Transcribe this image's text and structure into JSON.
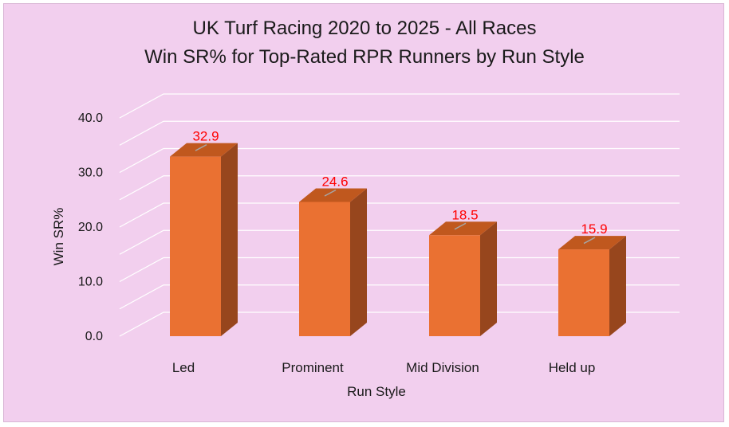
{
  "chart_data": {
    "type": "bar",
    "title": "UK Turf Racing 2020 to 2025 - All Races",
    "subtitle": "Win SR% for Top-Rated RPR Runners by Run Style",
    "xlabel": "Run Style",
    "ylabel": "Win SR%",
    "categories": [
      "Led",
      "Prominent",
      "Mid Division",
      "Held up"
    ],
    "values": [
      32.9,
      24.6,
      18.5,
      15.9
    ],
    "data_labels": [
      "32.9",
      "24.6",
      "18.5",
      "15.9"
    ],
    "yticks": [
      "0.0",
      "10.0",
      "20.0",
      "30.0",
      "40.0"
    ],
    "ylim": [
      0,
      40
    ],
    "grid": true,
    "style": "3d-column",
    "colors": {
      "bar_front": "#ea7132",
      "bar_top": "#c0581e",
      "bar_side": "#97461d",
      "background": "#f2cfee",
      "gridline": "#ffffff",
      "data_label": "#ff0000",
      "leader_line": "#a6a6a6"
    }
  }
}
